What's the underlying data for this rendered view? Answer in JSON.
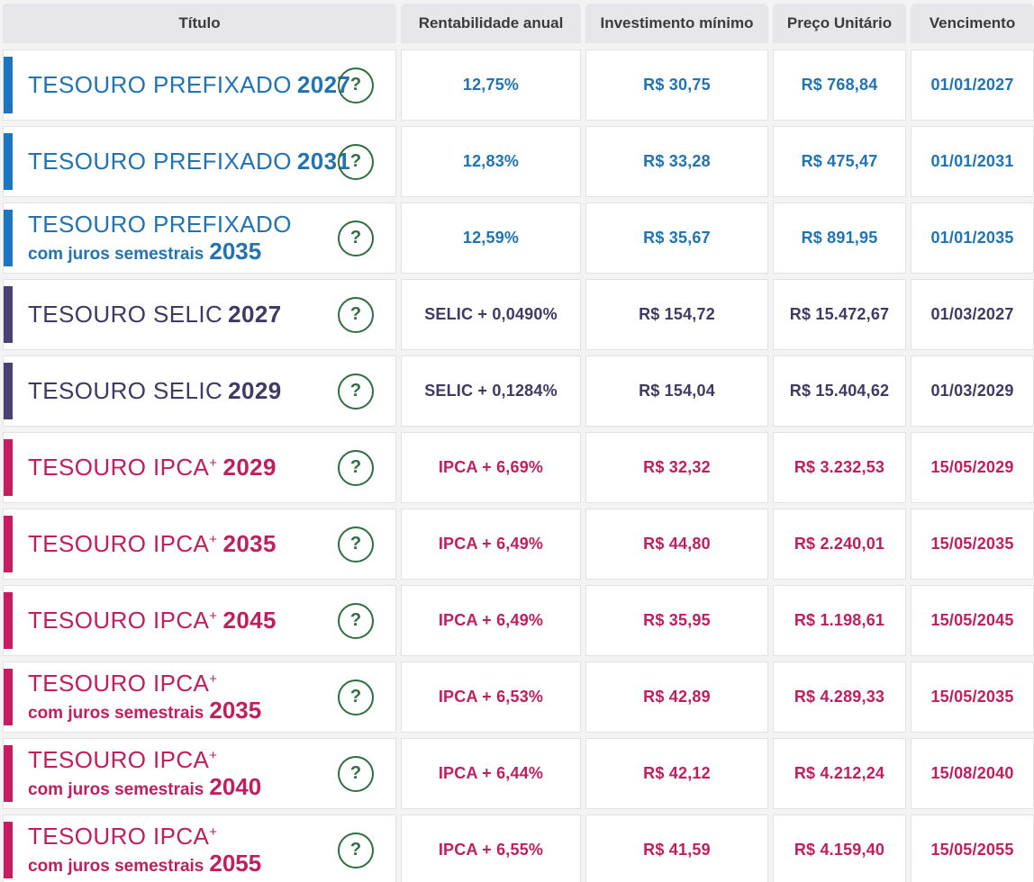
{
  "table": {
    "columns": [
      {
        "label": "Título"
      },
      {
        "label": "Rentabilidade anual"
      },
      {
        "label": "Investimento mínimo"
      },
      {
        "label": "Preço Unitário"
      },
      {
        "label": "Vencimento"
      }
    ],
    "help_glyph": "?",
    "help_icon_color": "#2f6e41",
    "themes": {
      "blue": {
        "text": "#2173b2",
        "bar": "#1d76bd"
      },
      "purple": {
        "text": "#3f3a63",
        "bar": "#4a4270"
      },
      "pink": {
        "text": "#c01e5f",
        "bar": "#c41e60"
      }
    },
    "rows": [
      {
        "theme": "blue",
        "name": "TESOURO PREFIXADO",
        "sup": "",
        "year": "2027",
        "subtitle": "",
        "subyear": "",
        "rate": "12,75%",
        "min": "R$ 30,75",
        "price": "R$ 768,84",
        "due": "01/01/2027"
      },
      {
        "theme": "blue",
        "name": "TESOURO PREFIXADO",
        "sup": "",
        "year": "2031",
        "subtitle": "",
        "subyear": "",
        "rate": "12,83%",
        "min": "R$ 33,28",
        "price": "R$ 475,47",
        "due": "01/01/2031"
      },
      {
        "theme": "blue",
        "name": "TESOURO PREFIXADO",
        "sup": "",
        "year": "",
        "subtitle": "com juros semestrais",
        "subyear": "2035",
        "rate": "12,59%",
        "min": "R$ 35,67",
        "price": "R$ 891,95",
        "due": "01/01/2035"
      },
      {
        "theme": "purple",
        "name": "TESOURO SELIC",
        "sup": "",
        "year": "2027",
        "subtitle": "",
        "subyear": "",
        "rate": "SELIC + 0,0490%",
        "min": "R$ 154,72",
        "price": "R$ 15.472,67",
        "due": "01/03/2027"
      },
      {
        "theme": "purple",
        "name": "TESOURO SELIC",
        "sup": "",
        "year": "2029",
        "subtitle": "",
        "subyear": "",
        "rate": "SELIC + 0,1284%",
        "min": "R$ 154,04",
        "price": "R$ 15.404,62",
        "due": "01/03/2029"
      },
      {
        "theme": "pink",
        "name": "TESOURO IPCA",
        "sup": "+",
        "year": "2029",
        "subtitle": "",
        "subyear": "",
        "rate": "IPCA + 6,69%",
        "min": "R$ 32,32",
        "price": "R$ 3.232,53",
        "due": "15/05/2029"
      },
      {
        "theme": "pink",
        "name": "TESOURO IPCA",
        "sup": "+",
        "year": "2035",
        "subtitle": "",
        "subyear": "",
        "rate": "IPCA + 6,49%",
        "min": "R$ 44,80",
        "price": "R$ 2.240,01",
        "due": "15/05/2035"
      },
      {
        "theme": "pink",
        "name": "TESOURO IPCA",
        "sup": "+",
        "year": "2045",
        "subtitle": "",
        "subyear": "",
        "rate": "IPCA + 6,49%",
        "min": "R$ 35,95",
        "price": "R$ 1.198,61",
        "due": "15/05/2045"
      },
      {
        "theme": "pink",
        "name": "TESOURO IPCA",
        "sup": "+",
        "year": "",
        "subtitle": "com juros semestrais",
        "subyear": "2035",
        "rate": "IPCA + 6,53%",
        "min": "R$ 42,89",
        "price": "R$ 4.289,33",
        "due": "15/05/2035"
      },
      {
        "theme": "pink",
        "name": "TESOURO IPCA",
        "sup": "+",
        "year": "",
        "subtitle": "com juros semestrais",
        "subyear": "2040",
        "rate": "IPCA + 6,44%",
        "min": "R$ 42,12",
        "price": "R$ 4.212,24",
        "due": "15/08/2040"
      },
      {
        "theme": "pink",
        "name": "TESOURO IPCA",
        "sup": "+",
        "year": "",
        "subtitle": "com juros semestrais",
        "subyear": "2055",
        "rate": "IPCA + 6,55%",
        "min": "R$ 41,59",
        "price": "R$ 4.159,40",
        "due": "15/05/2055"
      }
    ]
  }
}
